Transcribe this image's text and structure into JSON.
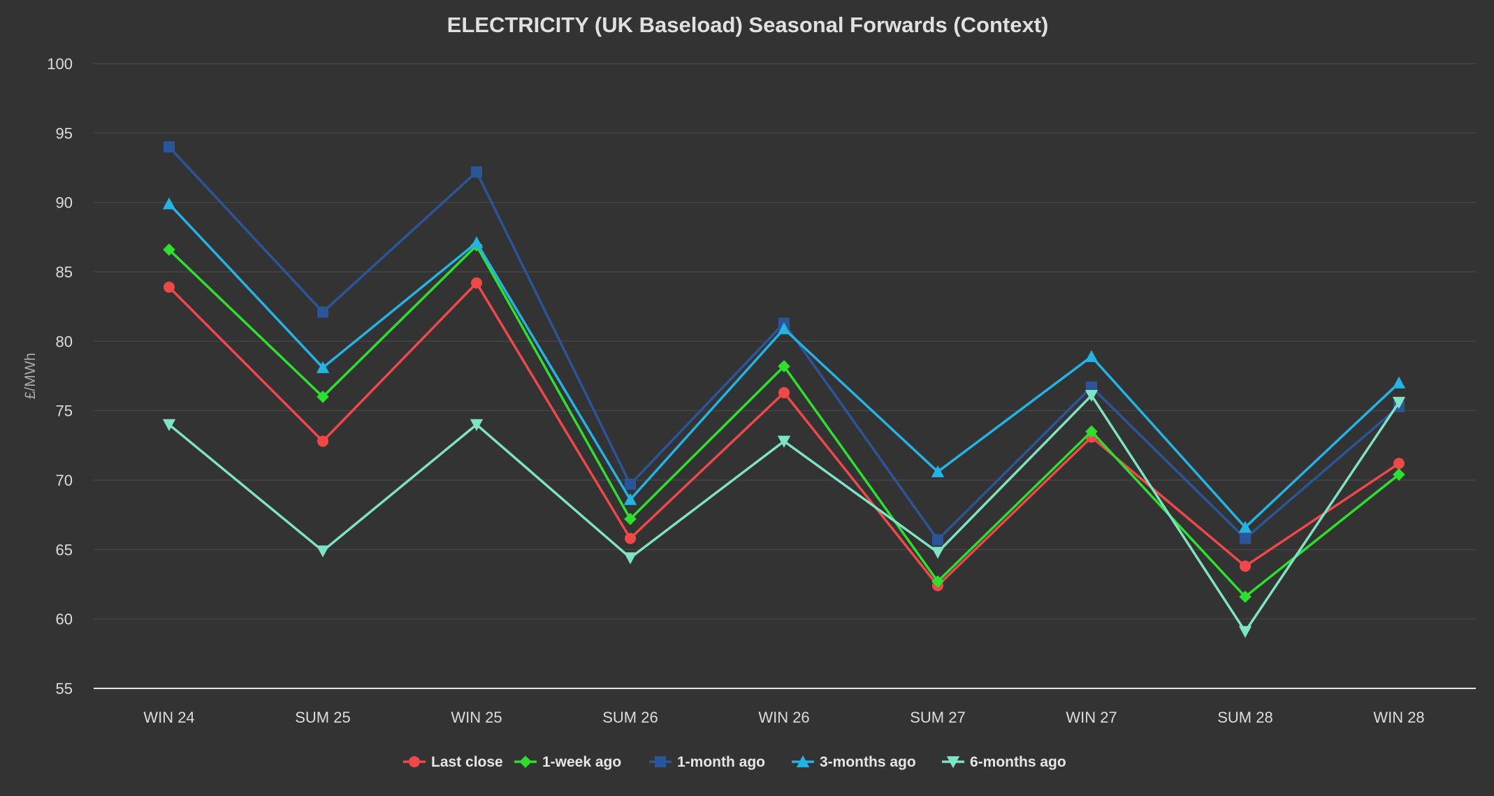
{
  "chart_data": {
    "type": "line",
    "title": "ELECTRICITY (UK Baseload) Seasonal Forwards (Context)",
    "xlabel": "",
    "ylabel": "£/MWh",
    "categories": [
      "WIN 24",
      "SUM 25",
      "WIN 25",
      "SUM 26",
      "WIN 26",
      "SUM 27",
      "WIN 27",
      "SUM 28",
      "WIN 28"
    ],
    "ylim": [
      55,
      100
    ],
    "yticks": [
      "55",
      "60",
      "65",
      "70",
      "75",
      "80",
      "85",
      "90",
      "95",
      "100"
    ],
    "grid": true,
    "legend_position": "bottom",
    "series": [
      {
        "name": "Last close",
        "color": "#f04848",
        "marker": "circle",
        "values": [
          83.9,
          72.8,
          84.2,
          65.8,
          76.3,
          62.4,
          73.1,
          63.8,
          71.2
        ]
      },
      {
        "name": "1-week ago",
        "color": "#2ee02e",
        "marker": "diamond",
        "values": [
          86.6,
          76.0,
          86.9,
          67.2,
          78.2,
          62.7,
          73.5,
          61.6,
          70.4
        ]
      },
      {
        "name": "1-month ago",
        "color": "#2a5599",
        "marker": "square",
        "values": [
          94.0,
          82.1,
          92.2,
          69.7,
          81.3,
          65.7,
          76.7,
          65.8,
          75.3
        ]
      },
      {
        "name": "3-months ago",
        "color": "#24b4e4",
        "marker": "triangle-up",
        "values": [
          89.9,
          78.1,
          87.1,
          68.6,
          80.9,
          70.6,
          78.9,
          66.6,
          77.0
        ]
      },
      {
        "name": "6-months ago",
        "color": "#7ee2c4",
        "marker": "triangle-down",
        "values": [
          74.0,
          64.9,
          74.0,
          64.4,
          72.8,
          64.8,
          76.1,
          59.1,
          75.6
        ]
      }
    ]
  }
}
